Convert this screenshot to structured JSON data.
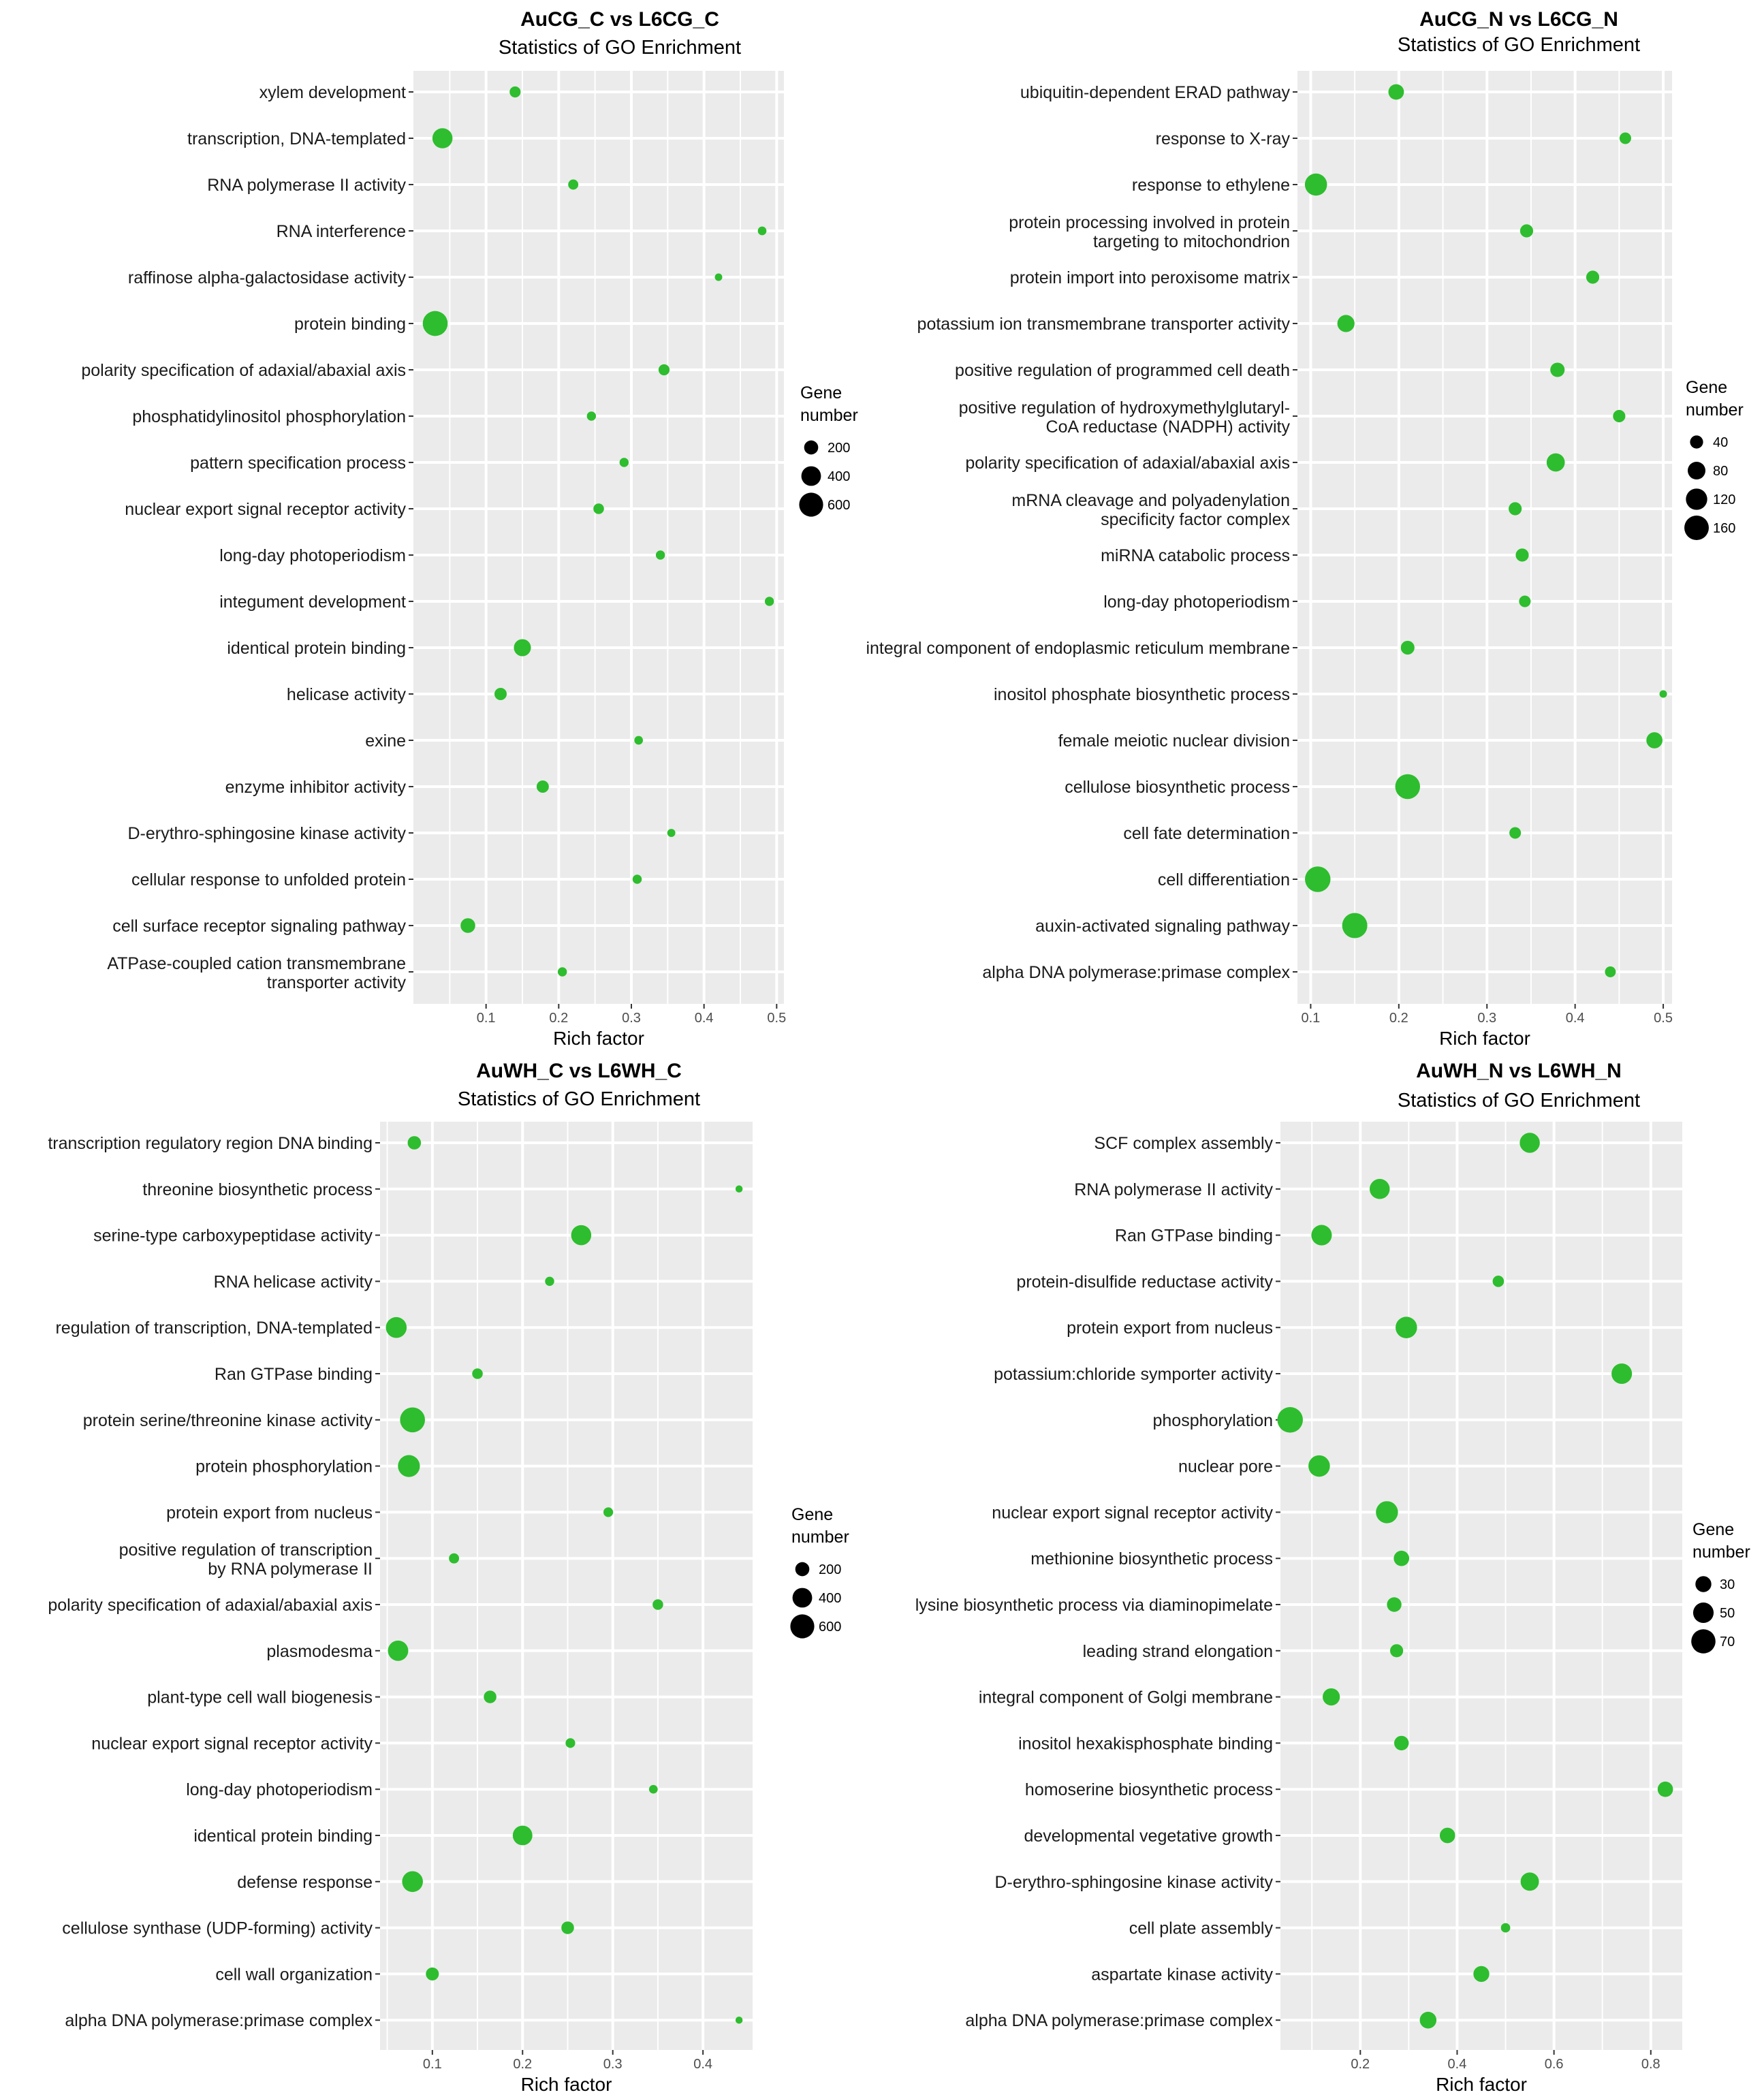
{
  "figure": {
    "marker_color": "#2ebd2e",
    "panel_background": "#ebebeb",
    "grid_color": "#ffffff"
  },
  "chart_data": [
    {
      "type": "scatter",
      "title": "AuCG_C vs L6CG_C",
      "subtitle": "Statistics of GO Enrichment",
      "xlabel": "Rich factor",
      "xlim": [
        0.0,
        0.51
      ],
      "xticks": [
        0.1,
        0.2,
        0.3,
        0.4,
        0.5
      ],
      "xtick_labels": [
        "0.1",
        "0.2",
        "0.3",
        "0.4",
        "0.5"
      ],
      "legend": {
        "title_line1": "Gene",
        "title_line2": "number",
        "position": "right",
        "values": [
          200,
          400,
          600
        ],
        "labels": [
          "200",
          "400",
          "600"
        ]
      },
      "size_range": [
        40,
        700
      ],
      "terms": [
        {
          "label": [
            "xylem development"
          ],
          "x": 0.14,
          "genes": 120
        },
        {
          "label": [
            "transcription, DNA-templated"
          ],
          "x": 0.04,
          "genes": 420
        },
        {
          "label": [
            "RNA polymerase II activity"
          ],
          "x": 0.22,
          "genes": 100
        },
        {
          "label": [
            "RNA interference"
          ],
          "x": 0.48,
          "genes": 70
        },
        {
          "label": [
            "raffinose alpha-galactosidase activity"
          ],
          "x": 0.42,
          "genes": 50
        },
        {
          "label": [
            "protein binding"
          ],
          "x": 0.03,
          "genes": 650
        },
        {
          "label": [
            "polarity specification of adaxial/abaxial axis"
          ],
          "x": 0.345,
          "genes": 120
        },
        {
          "label": [
            "phosphatidylinositol phosphorylation"
          ],
          "x": 0.245,
          "genes": 80
        },
        {
          "label": [
            "pattern specification process"
          ],
          "x": 0.29,
          "genes": 80
        },
        {
          "label": [
            "nuclear export signal receptor activity"
          ],
          "x": 0.255,
          "genes": 110
        },
        {
          "label": [
            "long-day photoperiodism"
          ],
          "x": 0.34,
          "genes": 80
        },
        {
          "label": [
            "integument development"
          ],
          "x": 0.49,
          "genes": 80
        },
        {
          "label": [
            "identical protein binding"
          ],
          "x": 0.15,
          "genes": 300
        },
        {
          "label": [
            "helicase activity"
          ],
          "x": 0.12,
          "genes": 150
        },
        {
          "label": [
            "exine"
          ],
          "x": 0.31,
          "genes": 70
        },
        {
          "label": [
            "enzyme inhibitor activity"
          ],
          "x": 0.178,
          "genes": 150
        },
        {
          "label": [
            "D-erythro-sphingosine kinase activity"
          ],
          "x": 0.355,
          "genes": 60
        },
        {
          "label": [
            "cellular response to unfolded protein"
          ],
          "x": 0.308,
          "genes": 80
        },
        {
          "label": [
            "cell surface receptor signaling pathway"
          ],
          "x": 0.075,
          "genes": 220
        },
        {
          "label": [
            "ATPase-coupled cation transmembrane",
            "transporter activity"
          ],
          "x": 0.205,
          "genes": 80
        }
      ]
    },
    {
      "type": "scatter",
      "title": "AuCG_N vs L6CG_N",
      "subtitle": "Statistics of GO Enrichment",
      "xlabel": "Rich factor",
      "xlim": [
        0.085,
        0.51
      ],
      "xticks": [
        0.1,
        0.2,
        0.3,
        0.4,
        0.5
      ],
      "xtick_labels": [
        "0.1",
        "0.2",
        "0.3",
        "0.4",
        "0.5"
      ],
      "legend": {
        "title_line1": "Gene",
        "title_line2": "number",
        "position": "right",
        "values": [
          40,
          80,
          120,
          160
        ],
        "labels": [
          "40",
          "80",
          "120",
          "160"
        ]
      },
      "size_range": [
        5,
        180
      ],
      "terms": [
        {
          "label": [
            "ubiquitin-dependent ERAD pathway"
          ],
          "x": 0.197,
          "genes": 60
        },
        {
          "label": [
            "response to X-ray"
          ],
          "x": 0.457,
          "genes": 30
        },
        {
          "label": [
            "response to ethylene"
          ],
          "x": 0.106,
          "genes": 130
        },
        {
          "label": [
            "protein processing involved in protein",
            "targeting to mitochondrion"
          ],
          "x": 0.345,
          "genes": 40
        },
        {
          "label": [
            "protein import into peroxisome matrix"
          ],
          "x": 0.42,
          "genes": 40
        },
        {
          "label": [
            "potassium ion transmembrane transporter activity"
          ],
          "x": 0.14,
          "genes": 75
        },
        {
          "label": [
            "positive regulation of programmed cell death"
          ],
          "x": 0.38,
          "genes": 50
        },
        {
          "label": [
            "positive regulation of hydroxymethylglutaryl-",
            "CoA reductase (NADPH) activity"
          ],
          "x": 0.45,
          "genes": 35
        },
        {
          "label": [
            "polarity specification of adaxial/abaxial axis"
          ],
          "x": 0.378,
          "genes": 85
        },
        {
          "label": [
            "mRNA cleavage and polyadenylation",
            "specificity factor complex"
          ],
          "x": 0.332,
          "genes": 40
        },
        {
          "label": [
            "miRNA catabolic process"
          ],
          "x": 0.34,
          "genes": 40
        },
        {
          "label": [
            "long-day photoperiodism"
          ],
          "x": 0.343,
          "genes": 30
        },
        {
          "label": [
            "integral component of endoplasmic reticulum membrane"
          ],
          "x": 0.21,
          "genes": 45
        },
        {
          "label": [
            "inositol phosphate biosynthetic process"
          ],
          "x": 0.5,
          "genes": 8
        },
        {
          "label": [
            "female meiotic nuclear division"
          ],
          "x": 0.49,
          "genes": 65
        },
        {
          "label": [
            "cellulose biosynthetic process"
          ],
          "x": 0.21,
          "genes": 165
        },
        {
          "label": [
            "cell fate determination"
          ],
          "x": 0.332,
          "genes": 30
        },
        {
          "label": [
            "cell differentiation"
          ],
          "x": 0.108,
          "genes": 175
        },
        {
          "label": [
            "auxin-activated signaling pathway"
          ],
          "x": 0.15,
          "genes": 170
        },
        {
          "label": [
            "alpha DNA polymerase:primase complex"
          ],
          "x": 0.44,
          "genes": 25
        }
      ]
    },
    {
      "type": "scatter",
      "title": "AuWH_C vs L6WH_C",
      "subtitle": "Statistics of GO Enrichment",
      "xlabel": "Rich factor",
      "xlim": [
        0.042,
        0.455
      ],
      "xticks": [
        0.1,
        0.2,
        0.3,
        0.4
      ],
      "xtick_labels": [
        "0.1",
        "0.2",
        "0.3",
        "0.4"
      ],
      "legend": {
        "title_line1": "Gene",
        "title_line2": "number",
        "position": "right",
        "values": [
          200,
          400,
          600
        ],
        "labels": [
          "200",
          "400",
          "600"
        ]
      },
      "size_range": [
        40,
        700
      ],
      "terms": [
        {
          "label": [
            "transcription regulatory region DNA binding"
          ],
          "x": 0.08,
          "genes": 180
        },
        {
          "label": [
            "threonine biosynthetic process"
          ],
          "x": 0.44,
          "genes": 45
        },
        {
          "label": [
            "serine-type carboxypeptidase activity"
          ],
          "x": 0.265,
          "genes": 420
        },
        {
          "label": [
            "RNA helicase activity"
          ],
          "x": 0.23,
          "genes": 80
        },
        {
          "label": [
            "regulation of transcription, DNA-templated"
          ],
          "x": 0.06,
          "genes": 450
        },
        {
          "label": [
            "Ran GTPase binding"
          ],
          "x": 0.15,
          "genes": 110
        },
        {
          "label": [
            "protein serine/threonine kinase activity"
          ],
          "x": 0.078,
          "genes": 650
        },
        {
          "label": [
            "protein phosphorylation"
          ],
          "x": 0.074,
          "genes": 500
        },
        {
          "label": [
            "protein export from nucleus"
          ],
          "x": 0.295,
          "genes": 90
        },
        {
          "label": [
            "positive regulation of transcription",
            "by RNA polymerase II"
          ],
          "x": 0.124,
          "genes": 100
        },
        {
          "label": [
            "polarity specification of adaxial/abaxial axis"
          ],
          "x": 0.35,
          "genes": 110
        },
        {
          "label": [
            "plasmodesma"
          ],
          "x": 0.062,
          "genes": 430
        },
        {
          "label": [
            "plant-type cell wall biogenesis"
          ],
          "x": 0.164,
          "genes": 160
        },
        {
          "label": [
            "nuclear export signal receptor activity"
          ],
          "x": 0.253,
          "genes": 90
        },
        {
          "label": [
            "long-day photoperiodism"
          ],
          "x": 0.345,
          "genes": 70
        },
        {
          "label": [
            "identical protein binding"
          ],
          "x": 0.2,
          "genes": 400
        },
        {
          "label": [
            "defense response"
          ],
          "x": 0.078,
          "genes": 450
        },
        {
          "label": [
            "cellulose synthase (UDP-forming) activity"
          ],
          "x": 0.25,
          "genes": 160
        },
        {
          "label": [
            "cell wall organization"
          ],
          "x": 0.1,
          "genes": 170
        },
        {
          "label": [
            "alpha DNA polymerase:primase complex"
          ],
          "x": 0.44,
          "genes": 45
        }
      ]
    },
    {
      "type": "scatter",
      "title": "AuWH_N vs L6WH_N",
      "subtitle": "Statistics of GO Enrichment",
      "xlabel": "Rich factor",
      "xlim": [
        0.035,
        0.865
      ],
      "xticks": [
        0.2,
        0.4,
        0.6,
        0.8
      ],
      "xtick_labels": [
        "0.2",
        "0.4",
        "0.6",
        "0.8"
      ],
      "legend": {
        "title_line1": "Gene",
        "title_line2": "number",
        "position": "right",
        "values": [
          30,
          50,
          70
        ],
        "labels": [
          "30",
          "50",
          "70"
        ]
      },
      "size_range": [
        5,
        80
      ],
      "terms": [
        {
          "label": [
            "SCF complex assembly"
          ],
          "x": 0.55,
          "genes": 48
        },
        {
          "label": [
            "RNA polymerase II activity"
          ],
          "x": 0.24,
          "genes": 48
        },
        {
          "label": [
            "Ran GTPase binding"
          ],
          "x": 0.12,
          "genes": 50
        },
        {
          "label": [
            "protein-disulfide reductase activity"
          ],
          "x": 0.485,
          "genes": 15
        },
        {
          "label": [
            "protein export from nucleus"
          ],
          "x": 0.295,
          "genes": 55
        },
        {
          "label": [
            "potassium:chloride symporter activity"
          ],
          "x": 0.74,
          "genes": 50
        },
        {
          "label": [
            "phosphorylation"
          ],
          "x": 0.055,
          "genes": 78
        },
        {
          "label": [
            "nuclear pore"
          ],
          "x": 0.115,
          "genes": 55
        },
        {
          "label": [
            "nuclear export signal receptor activity"
          ],
          "x": 0.255,
          "genes": 58
        },
        {
          "label": [
            "methionine biosynthetic process"
          ],
          "x": 0.285,
          "genes": 28
        },
        {
          "label": [
            "lysine biosynthetic process via diaminopimelate"
          ],
          "x": 0.27,
          "genes": 25
        },
        {
          "label": [
            "leading strand elongation"
          ],
          "x": 0.275,
          "genes": 20
        },
        {
          "label": [
            "integral component of Golgi membrane"
          ],
          "x": 0.14,
          "genes": 35
        },
        {
          "label": [
            "inositol hexakisphosphate binding"
          ],
          "x": 0.285,
          "genes": 25
        },
        {
          "label": [
            "homoserine biosynthetic process"
          ],
          "x": 0.83,
          "genes": 28
        },
        {
          "label": [
            "developmental vegetative growth"
          ],
          "x": 0.38,
          "genes": 28
        },
        {
          "label": [
            "D-erythro-sphingosine kinase activity"
          ],
          "x": 0.55,
          "genes": 40
        },
        {
          "label": [
            "cell plate assembly"
          ],
          "x": 0.5,
          "genes": 10
        },
        {
          "label": [
            "aspartate kinase activity"
          ],
          "x": 0.45,
          "genes": 30
        },
        {
          "label": [
            "alpha DNA polymerase:primase complex"
          ],
          "x": 0.34,
          "genes": 33
        }
      ]
    }
  ]
}
